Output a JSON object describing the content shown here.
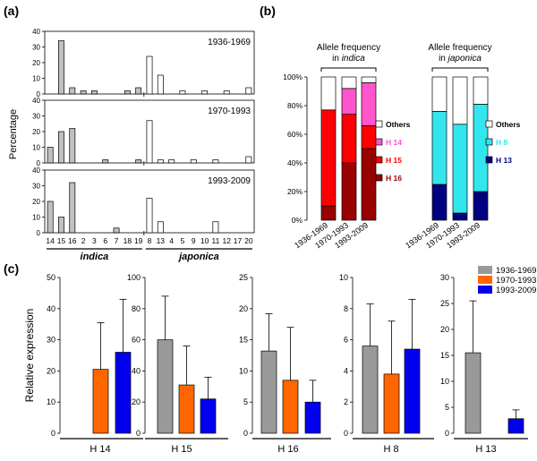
{
  "panel_labels": {
    "a": "(a)",
    "b": "(b)",
    "c": "(c)"
  },
  "colors": {
    "indica_bar": "#c0c0c0",
    "japonica_bar": "#ffffff",
    "gray": "#999999",
    "orange": "#ff6600",
    "blue": "#0000ee",
    "others": "#ffffff",
    "h14": "#ff55cc",
    "h15": "#ff0000",
    "h16": "#990000",
    "h8": "#33e6ee",
    "h13": "#000080"
  },
  "chart_data": [
    {
      "id": "a",
      "type": "bar",
      "ylabel": "Percentage",
      "ylim": [
        0,
        40
      ],
      "yticks": [
        0,
        10,
        20,
        30,
        40
      ],
      "categories": [
        "14",
        "15",
        "16",
        "2",
        "3",
        "6",
        "7",
        "18",
        "19",
        "8",
        "13",
        "4",
        "5",
        "9",
        "10",
        "11",
        "12",
        "17",
        "20"
      ],
      "groups": [
        {
          "name": "indica",
          "from": 0,
          "to": 8
        },
        {
          "name": "japonica",
          "from": 9,
          "to": 18
        }
      ],
      "subplots": [
        {
          "period": "1936-1969",
          "values": [
            0,
            34,
            4,
            2,
            2,
            0,
            0,
            2,
            4,
            24,
            12,
            0,
            2,
            0,
            2,
            0,
            2,
            0,
            4
          ]
        },
        {
          "period": "1970-1993",
          "values": [
            10,
            20,
            22,
            0,
            0,
            2,
            0,
            0,
            2,
            27,
            2,
            2,
            0,
            2,
            0,
            2,
            0,
            0,
            4
          ]
        },
        {
          "period": "1993-2009",
          "values": [
            20,
            10,
            32,
            0,
            0,
            0,
            3,
            0,
            0,
            22,
            7,
            0,
            0,
            0,
            0,
            7,
            0,
            0,
            0
          ]
        }
      ]
    },
    {
      "id": "b",
      "type": "bar",
      "stacked": true,
      "ylim": [
        0,
        100
      ],
      "yticks": [
        "0%",
        "20%",
        "40%",
        "60%",
        "80%",
        "100%"
      ],
      "groups": [
        {
          "title_line1": "Allele frequency",
          "title_line2": "in indica",
          "categories": [
            "1936-1969",
            "1970-1993",
            "1993-2009"
          ],
          "series": [
            {
              "name": "H 16",
              "color_key": "h16",
              "values": [
                10,
                40,
                50
              ]
            },
            {
              "name": "H 15",
              "color_key": "h15",
              "values": [
                67,
                34,
                16
              ]
            },
            {
              "name": "H 14",
              "color_key": "h14",
              "values": [
                0,
                18,
                30
              ]
            },
            {
              "name": "Others",
              "color_key": "others",
              "values": [
                23,
                8,
                4
              ]
            }
          ]
        },
        {
          "title_line1": "Allele frequency",
          "title_line2": "in japonica",
          "categories": [
            "1936-1969",
            "1970-1993",
            "1993-2009"
          ],
          "series": [
            {
              "name": "H 13",
              "color_key": "h13",
              "values": [
                25,
                5,
                20
              ]
            },
            {
              "name": "H 8",
              "color_key": "h8",
              "values": [
                51,
                62,
                61
              ]
            },
            {
              "name": "Others",
              "color_key": "others",
              "values": [
                24,
                33,
                19
              ]
            }
          ]
        }
      ]
    },
    {
      "id": "c",
      "type": "bar",
      "ylabel": "Relative expression",
      "legend": [
        "1936-1969",
        "1970-1993",
        "1993-2009"
      ],
      "legend_placement": "top-right",
      "subplots": [
        {
          "label": "H 14",
          "ylim": [
            0,
            50
          ],
          "yticks": [
            0,
            10,
            20,
            30,
            40,
            50
          ],
          "values": [
            null,
            20.5,
            26
          ],
          "errors": [
            null,
            15,
            17
          ]
        },
        {
          "label": "H 15",
          "ylim": [
            0,
            100
          ],
          "yticks": [
            0,
            20,
            40,
            60,
            80,
            100
          ],
          "values": [
            60,
            31,
            22
          ],
          "errors": [
            28,
            25,
            14
          ]
        },
        {
          "label": "H 16",
          "ylim": [
            0,
            25
          ],
          "yticks": [
            0,
            5,
            10,
            15,
            20,
            25
          ],
          "values": [
            13.2,
            8.5,
            5
          ],
          "errors": [
            6,
            8.5,
            3.5
          ]
        },
        {
          "label": "H 8",
          "ylim": [
            0,
            10
          ],
          "yticks": [
            0,
            2,
            4,
            6,
            8,
            10
          ],
          "values": [
            5.6,
            3.8,
            5.4
          ],
          "errors": [
            2.7,
            3.4,
            3.2
          ]
        },
        {
          "label": "H 13",
          "ylim": [
            0,
            30
          ],
          "yticks": [
            0,
            5,
            10,
            15,
            20,
            25,
            30
          ],
          "values": [
            15.5,
            null,
            2.8
          ],
          "errors": [
            10,
            null,
            1.7
          ]
        }
      ]
    }
  ]
}
